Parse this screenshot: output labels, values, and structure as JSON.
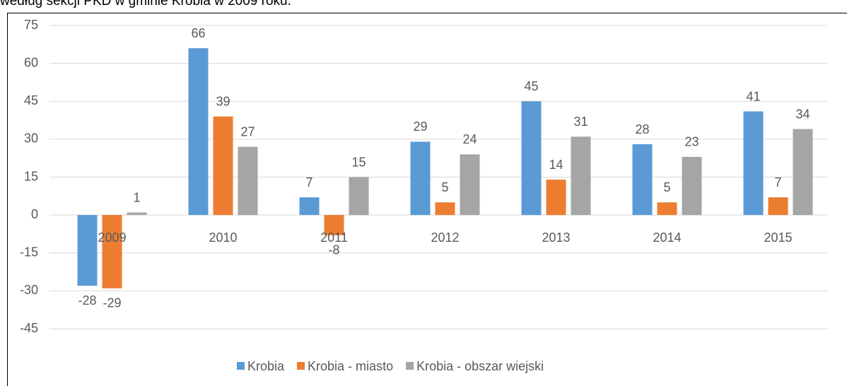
{
  "chart_data": {
    "type": "bar",
    "title": "według sekcji PKD w gminie Krobia w 2009 roku.",
    "categories": [
      "2009",
      "2010",
      "2011",
      "2012",
      "2013",
      "2014",
      "2015"
    ],
    "series": [
      {
        "name": "Krobia",
        "color": "#5b9bd5",
        "values": [
          -28,
          66,
          7,
          29,
          45,
          28,
          41
        ]
      },
      {
        "name": "Krobia - miasto",
        "color": "#ed7d31",
        "values": [
          -29,
          39,
          -8,
          5,
          14,
          5,
          7
        ]
      },
      {
        "name": "Krobia - obszar wiejski",
        "color": "#a5a5a5",
        "values": [
          1,
          27,
          15,
          24,
          31,
          23,
          34
        ]
      }
    ],
    "ylim": [
      -45,
      75
    ],
    "yticks": [
      -45,
      -30,
      -15,
      0,
      15,
      30,
      45,
      60,
      75
    ],
    "grid": true,
    "legend": "bottom"
  }
}
